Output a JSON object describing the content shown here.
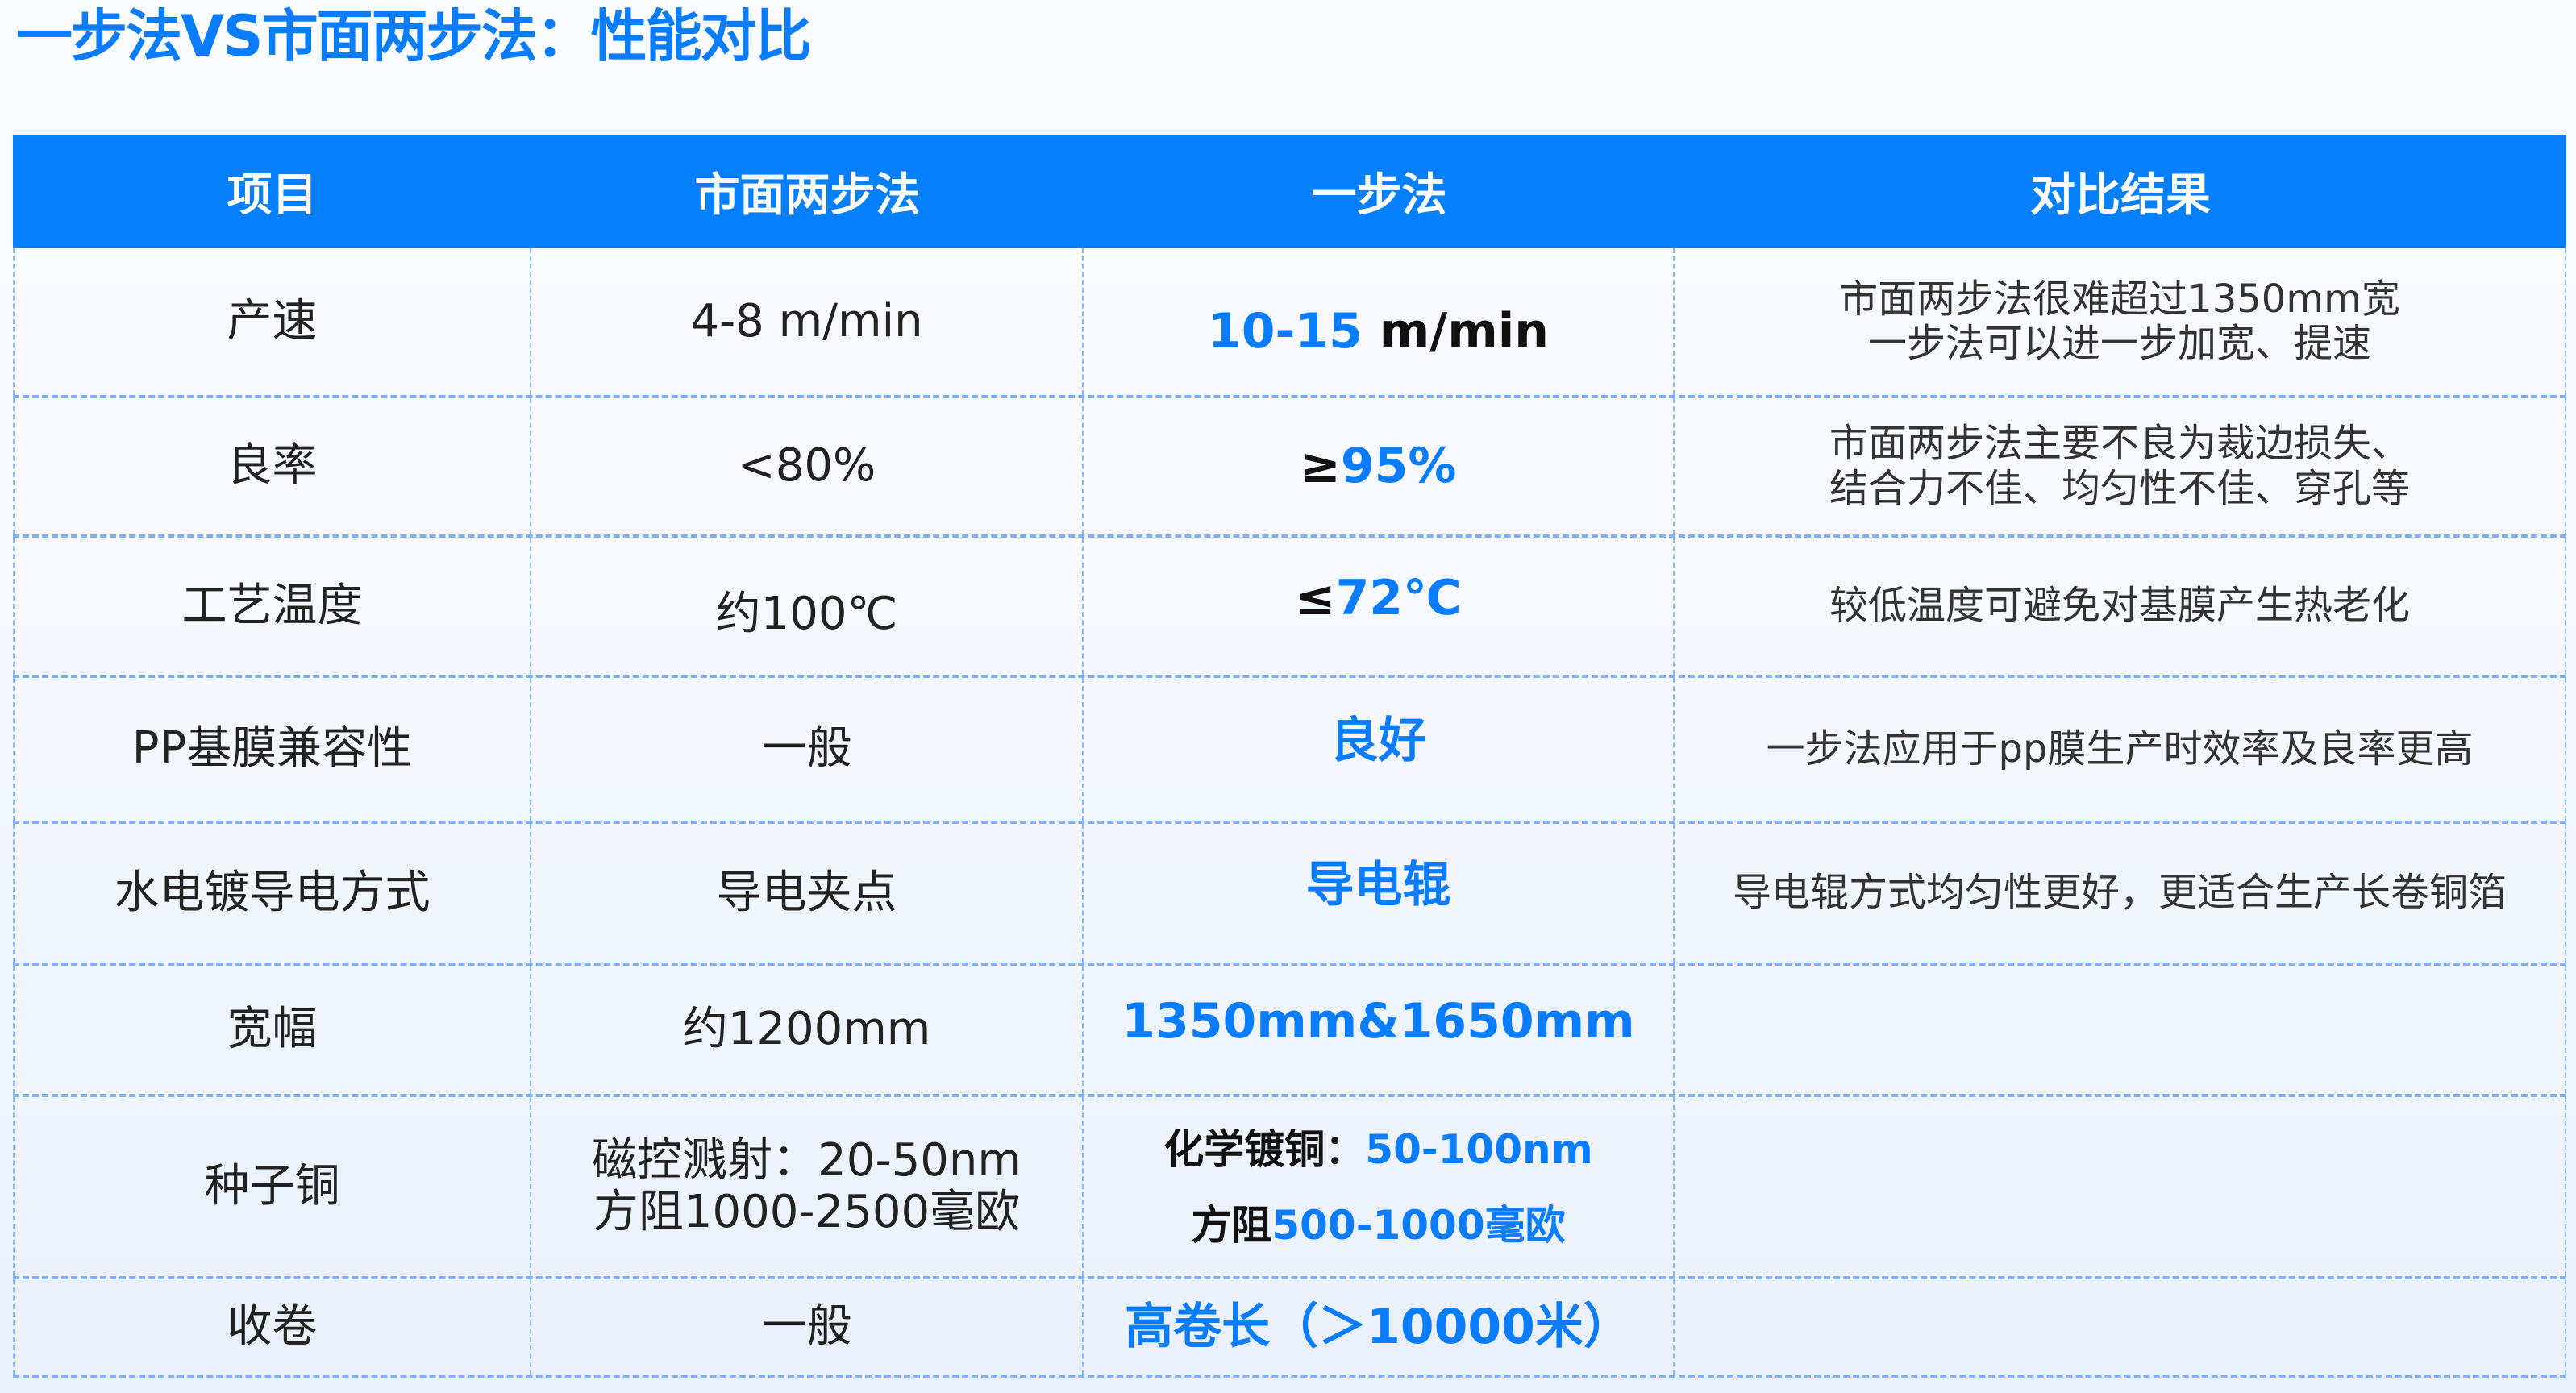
{
  "title": "一步法VS市面两步法：性能对比",
  "colors": {
    "accent": "#0a7cff",
    "header_bg": "#067ffd",
    "grid": "#7fb0f7"
  },
  "headers": [
    "项目",
    "市面两步法",
    "一步法",
    "对比结果"
  ],
  "rows": [
    {
      "item": "产速",
      "two_step": "4-8 m/min",
      "one_step_hl": "10-15",
      "one_step_rest": " m/min",
      "result": [
        "市面两步法很难超过1350mm宽",
        "一步法可以进一步加宽、提速"
      ]
    },
    {
      "item": "良率",
      "two_step": "<80%",
      "one_step_pre": "≥",
      "one_step_hl": "95%",
      "result": [
        "市面两步法主要不良为裁边损失、",
        "结合力不佳、均匀性不佳、穿孔等"
      ]
    },
    {
      "item": "工艺温度",
      "two_step": "约100℃",
      "one_step_pre": "≤",
      "one_step_hl": "72℃",
      "result": [
        "较低温度可避免对基膜产生热老化"
      ]
    },
    {
      "item": "PP基膜兼容性",
      "two_step": "一般",
      "one_step_hl": "良好",
      "result": [
        "一步法应用于pp膜生产时效率及良率更高"
      ]
    },
    {
      "item": "水电镀导电方式",
      "two_step": "导电夹点",
      "one_step_hl": "导电辊",
      "result": [
        "导电辊方式均匀性更好，更适合生产长卷铜箔"
      ]
    },
    {
      "item": "宽幅",
      "two_step": "约1200mm",
      "one_step_hl": "1350mm&1650mm",
      "result": []
    },
    {
      "item": "种子铜",
      "two_step": [
        "磁控溅射：20-50nm",
        "方阻1000-2500毫欧"
      ],
      "one_step": [
        {
          "pre": "化学镀铜：",
          "hl": "50-100nm"
        },
        {
          "pre": "方阻",
          "hl": "500-1000毫欧"
        }
      ],
      "result": []
    },
    {
      "item": "收卷",
      "two_step": "一般",
      "one_step_hl": "高卷长（＞10000米）",
      "result": []
    }
  ]
}
